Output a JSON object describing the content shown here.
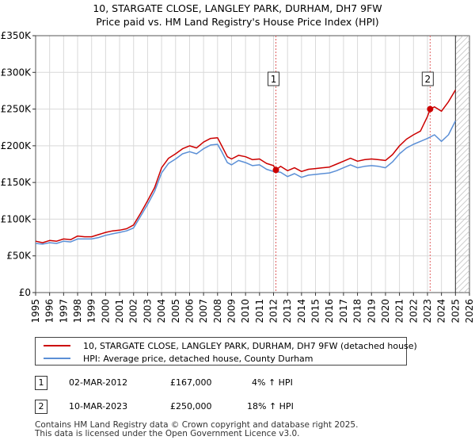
{
  "title": {
    "line1": "10, STARGATE CLOSE, LANGLEY PARK, DURHAM, DH7 9FW",
    "line2": "Price paid vs. HM Land Registry's House Price Index (HPI)"
  },
  "chart_data": {
    "type": "line",
    "title": "10, STARGATE CLOSE, LANGLEY PARK, DURHAM, DH7 9FW — Price paid vs. HM Land Registry's House Price Index (HPI)",
    "xlabel": "",
    "ylabel": "",
    "xlim": [
      1995,
      2026
    ],
    "ylim": [
      0,
      350000
    ],
    "grid": true,
    "x_ticks": [
      "1995",
      "1996",
      "1997",
      "1998",
      "1999",
      "2000",
      "2001",
      "2002",
      "2003",
      "2004",
      "2005",
      "2006",
      "2007",
      "2008",
      "2009",
      "2010",
      "2011",
      "2012",
      "2013",
      "2014",
      "2015",
      "2016",
      "2017",
      "2018",
      "2019",
      "2020",
      "2021",
      "2022",
      "2023",
      "2024",
      "2025",
      "2026"
    ],
    "y_ticks": [
      "£0",
      "£50K",
      "£100K",
      "£150K",
      "£200K",
      "£250K",
      "£300K",
      "£350K"
    ],
    "forecast_start": 2025.0,
    "series": [
      {
        "name": "10, STARGATE CLOSE, LANGLEY PARK, DURHAM, DH7 9FW (detached house)",
        "color": "#cc0000",
        "x": [
          1995.0,
          1995.5,
          1996.0,
          1996.5,
          1997.0,
          1997.5,
          1998.0,
          1998.5,
          1999.0,
          1999.5,
          2000.0,
          2000.5,
          2001.0,
          2001.5,
          2002.0,
          2002.5,
          2003.0,
          2003.5,
          2004.0,
          2004.5,
          2005.0,
          2005.5,
          2006.0,
          2006.5,
          2007.0,
          2007.5,
          2008.0,
          2008.3,
          2008.7,
          2009.0,
          2009.5,
          2010.0,
          2010.5,
          2011.0,
          2011.5,
          2012.0,
          2012.17,
          2012.5,
          2013.0,
          2013.5,
          2014.0,
          2014.5,
          2015.0,
          2015.5,
          2016.0,
          2016.5,
          2017.0,
          2017.5,
          2018.0,
          2018.5,
          2019.0,
          2019.5,
          2020.0,
          2020.5,
          2021.0,
          2021.5,
          2022.0,
          2022.5,
          2023.0,
          2023.19,
          2023.5,
          2024.0,
          2024.5,
          2025.0
        ],
        "values": [
          70000,
          68000,
          71000,
          70000,
          73000,
          72000,
          77000,
          76000,
          76000,
          79000,
          82000,
          84000,
          85000,
          87000,
          92000,
          108000,
          125000,
          143000,
          170000,
          183000,
          189000,
          196000,
          200000,
          197000,
          205000,
          210000,
          211000,
          200000,
          185000,
          182000,
          187000,
          185000,
          181000,
          182000,
          176000,
          173000,
          167000,
          172000,
          166000,
          170000,
          165000,
          168000,
          169000,
          170000,
          171000,
          175000,
          179000,
          183000,
          179000,
          181000,
          182000,
          181000,
          180000,
          188000,
          200000,
          209000,
          215000,
          220000,
          240000,
          250000,
          253000,
          247000,
          260000,
          276000
        ]
      },
      {
        "name": "HPI: Average price, detached house, County Durham",
        "color": "#5b8fd6",
        "x": [
          1995.0,
          1995.5,
          1996.0,
          1996.5,
          1997.0,
          1997.5,
          1998.0,
          1998.5,
          1999.0,
          1999.5,
          2000.0,
          2000.5,
          2001.0,
          2001.5,
          2002.0,
          2002.5,
          2003.0,
          2003.5,
          2004.0,
          2004.5,
          2005.0,
          2005.5,
          2006.0,
          2006.5,
          2007.0,
          2007.5,
          2008.0,
          2008.3,
          2008.7,
          2009.0,
          2009.5,
          2010.0,
          2010.5,
          2011.0,
          2011.5,
          2012.0,
          2012.5,
          2013.0,
          2013.5,
          2014.0,
          2014.5,
          2015.0,
          2015.5,
          2016.0,
          2016.5,
          2017.0,
          2017.5,
          2018.0,
          2018.5,
          2019.0,
          2019.5,
          2020.0,
          2020.5,
          2021.0,
          2021.5,
          2022.0,
          2022.5,
          2023.0,
          2023.5,
          2024.0,
          2024.5,
          2025.0
        ],
        "values": [
          67000,
          66000,
          68000,
          67000,
          70000,
          69000,
          73000,
          73000,
          73000,
          75000,
          78000,
          80000,
          82000,
          84000,
          88000,
          104000,
          120000,
          138000,
          163000,
          176000,
          182000,
          189000,
          192000,
          189000,
          196000,
          201000,
          202000,
          192000,
          177000,
          174000,
          180000,
          177000,
          173000,
          174000,
          168000,
          165000,
          164000,
          158000,
          162000,
          157000,
          160000,
          161000,
          162000,
          163000,
          166000,
          170000,
          174000,
          170000,
          172000,
          173000,
          172000,
          170000,
          178000,
          189000,
          197000,
          202000,
          206000,
          210000,
          215000,
          206000,
          215000,
          234000
        ]
      }
    ],
    "annotations": [
      {
        "label": "1",
        "x": 2012.17,
        "y": 167000
      },
      {
        "label": "2",
        "x": 2023.19,
        "y": 250000
      }
    ]
  },
  "legend": {
    "items": [
      {
        "label": "10, STARGATE CLOSE, LANGLEY PARK, DURHAM, DH7 9FW (detached house)",
        "color": "#cc0000"
      },
      {
        "label": "HPI: Average price, detached house, County Durham",
        "color": "#5b8fd6"
      }
    ]
  },
  "transactions": [
    {
      "marker": "1",
      "date": "02-MAR-2012",
      "price": "£167,000",
      "hpi": "4% ↑ HPI"
    },
    {
      "marker": "2",
      "date": "10-MAR-2023",
      "price": "£250,000",
      "hpi": "18% ↑ HPI"
    }
  ],
  "footer": {
    "line1": "Contains HM Land Registry data © Crown copyright and database right 2025.",
    "line2": "This data is licensed under the Open Government Licence v3.0."
  }
}
